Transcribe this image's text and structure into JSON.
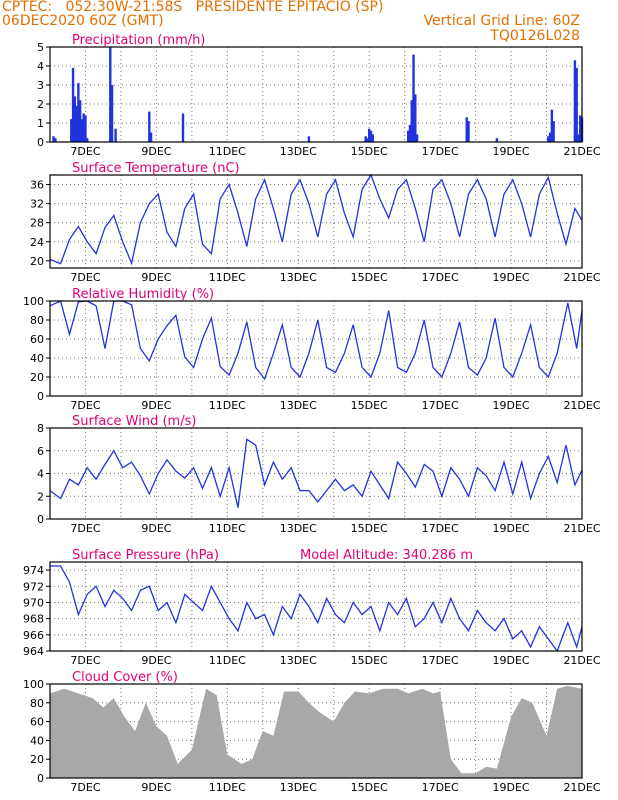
{
  "header": {
    "line1_left": "CPTEC:   052:30W-21:58S   PRESIDENTE EPITACIO (SP)",
    "line2_left": "06DEC2020 60Z (GMT)",
    "line2_right": "Vertical Grid Line: 60Z",
    "line3_right": "TQ0126L028"
  },
  "colors": {
    "header": "#e07000",
    "title": "#e0007a",
    "line": "#2233dd",
    "cloud": "#a8a8a8"
  },
  "x_axis": {
    "labels": [
      "7DEC",
      "9DEC",
      "11DEC",
      "13DEC",
      "15DEC",
      "17DEC",
      "19DEC",
      "21DEC"
    ],
    "range_days": [
      6,
      21
    ]
  },
  "chart_data": [
    {
      "id": "precip",
      "type": "bar",
      "title": "Precipitation  (mm/h)",
      "ylim": [
        0,
        5
      ],
      "yticks": [
        0,
        1,
        2,
        3,
        4,
        5
      ],
      "bars": [
        [
          6.1,
          0.3
        ],
        [
          6.15,
          0.2
        ],
        [
          6.6,
          1.2
        ],
        [
          6.65,
          3.9
        ],
        [
          6.7,
          2.4
        ],
        [
          6.75,
          1.9
        ],
        [
          6.8,
          3.1
        ],
        [
          6.85,
          2.2
        ],
        [
          6.9,
          1.2
        ],
        [
          6.95,
          1.5
        ],
        [
          7.0,
          1.4
        ],
        [
          7.05,
          0.2
        ],
        [
          7.7,
          5.0
        ],
        [
          7.75,
          3.0
        ],
        [
          7.85,
          0.7
        ],
        [
          8.8,
          1.6
        ],
        [
          8.85,
          0.5
        ],
        [
          9.75,
          1.5
        ],
        [
          13.3,
          0.3
        ],
        [
          14.9,
          0.3
        ],
        [
          14.95,
          0.2
        ],
        [
          15.0,
          0.7
        ],
        [
          15.05,
          0.6
        ],
        [
          15.1,
          0.4
        ],
        [
          16.1,
          0.6
        ],
        [
          16.15,
          0.9
        ],
        [
          16.2,
          2.2
        ],
        [
          16.25,
          4.6
        ],
        [
          16.3,
          2.5
        ],
        [
          16.35,
          0.4
        ],
        [
          17.75,
          1.3
        ],
        [
          17.8,
          1.1
        ],
        [
          18.6,
          0.2
        ],
        [
          20.05,
          0.3
        ],
        [
          20.1,
          0.5
        ],
        [
          20.15,
          1.7
        ],
        [
          20.2,
          1.1
        ],
        [
          20.8,
          4.3
        ],
        [
          20.85,
          3.9
        ],
        [
          20.9,
          0.4
        ],
        [
          20.95,
          1.4
        ],
        [
          21.0,
          1.3
        ]
      ]
    },
    {
      "id": "temp",
      "type": "line",
      "title": "Surface Temperature (nC)",
      "ylim": [
        18.5,
        38
      ],
      "yticks": [
        20,
        24,
        28,
        32,
        36
      ],
      "points": [
        [
          6.0,
          20.3
        ],
        [
          6.3,
          19.4
        ],
        [
          6.55,
          24.5
        ],
        [
          6.8,
          27.2
        ],
        [
          7.05,
          24
        ],
        [
          7.3,
          21.5
        ],
        [
          7.55,
          27
        ],
        [
          7.8,
          29.5
        ],
        [
          8.05,
          24
        ],
        [
          8.3,
          19.5
        ],
        [
          8.55,
          28
        ],
        [
          8.8,
          32
        ],
        [
          9.05,
          34
        ],
        [
          9.3,
          26
        ],
        [
          9.55,
          23
        ],
        [
          9.8,
          31
        ],
        [
          10.05,
          34
        ],
        [
          10.3,
          23.5
        ],
        [
          10.55,
          21.5
        ],
        [
          10.8,
          33
        ],
        [
          11.05,
          36
        ],
        [
          11.3,
          30
        ],
        [
          11.55,
          23
        ],
        [
          11.8,
          33
        ],
        [
          12.05,
          37
        ],
        [
          12.3,
          31
        ],
        [
          12.55,
          24
        ],
        [
          12.8,
          34
        ],
        [
          13.05,
          37
        ],
        [
          13.3,
          32
        ],
        [
          13.55,
          25
        ],
        [
          13.8,
          34
        ],
        [
          14.05,
          37
        ],
        [
          14.3,
          30
        ],
        [
          14.55,
          25
        ],
        [
          14.8,
          35
        ],
        [
          15.05,
          38
        ],
        [
          15.3,
          33
        ],
        [
          15.55,
          29
        ],
        [
          15.8,
          35
        ],
        [
          16.05,
          37
        ],
        [
          16.3,
          31
        ],
        [
          16.55,
          24
        ],
        [
          16.8,
          35
        ],
        [
          17.05,
          37
        ],
        [
          17.3,
          32
        ],
        [
          17.55,
          25
        ],
        [
          17.8,
          34
        ],
        [
          18.05,
          37
        ],
        [
          18.3,
          33
        ],
        [
          18.55,
          25
        ],
        [
          18.8,
          34
        ],
        [
          19.05,
          37
        ],
        [
          19.3,
          32
        ],
        [
          19.55,
          25
        ],
        [
          19.8,
          34
        ],
        [
          20.05,
          37.5
        ],
        [
          20.3,
          30
        ],
        [
          20.55,
          23.5
        ],
        [
          20.8,
          31
        ],
        [
          21.0,
          28.5
        ]
      ]
    },
    {
      "id": "rh",
      "type": "line",
      "title": "Relative Humidity  (%)",
      "ylim": [
        0,
        100
      ],
      "yticks": [
        0,
        20,
        40,
        60,
        80,
        100
      ],
      "points": [
        [
          6.0,
          95
        ],
        [
          6.3,
          100
        ],
        [
          6.55,
          65
        ],
        [
          6.8,
          99
        ],
        [
          7.05,
          100
        ],
        [
          7.3,
          95
        ],
        [
          7.55,
          50
        ],
        [
          7.8,
          100
        ],
        [
          8.05,
          100
        ],
        [
          8.3,
          96
        ],
        [
          8.55,
          50
        ],
        [
          8.8,
          37
        ],
        [
          9.05,
          60
        ],
        [
          9.3,
          74
        ],
        [
          9.55,
          85
        ],
        [
          9.8,
          41
        ],
        [
          10.05,
          30
        ],
        [
          10.3,
          60
        ],
        [
          10.55,
          82
        ],
        [
          10.8,
          31
        ],
        [
          11.05,
          22
        ],
        [
          11.3,
          45
        ],
        [
          11.55,
          78
        ],
        [
          11.8,
          30
        ],
        [
          12.05,
          18
        ],
        [
          12.3,
          45
        ],
        [
          12.55,
          75
        ],
        [
          12.8,
          30
        ],
        [
          13.05,
          20
        ],
        [
          13.3,
          45
        ],
        [
          13.55,
          80
        ],
        [
          13.8,
          30
        ],
        [
          14.05,
          25
        ],
        [
          14.3,
          45
        ],
        [
          14.55,
          75
        ],
        [
          14.8,
          30
        ],
        [
          15.05,
          20
        ],
        [
          15.3,
          45
        ],
        [
          15.55,
          90
        ],
        [
          15.8,
          30
        ],
        [
          16.05,
          25
        ],
        [
          16.3,
          45
        ],
        [
          16.55,
          80
        ],
        [
          16.8,
          30
        ],
        [
          17.05,
          20
        ],
        [
          17.3,
          45
        ],
        [
          17.55,
          78
        ],
        [
          17.8,
          30
        ],
        [
          18.05,
          22
        ],
        [
          18.3,
          40
        ],
        [
          18.55,
          82
        ],
        [
          18.8,
          30
        ],
        [
          19.05,
          20
        ],
        [
          19.3,
          45
        ],
        [
          19.55,
          75
        ],
        [
          19.8,
          30
        ],
        [
          20.05,
          20
        ],
        [
          20.3,
          45
        ],
        [
          20.6,
          98
        ],
        [
          20.85,
          50
        ],
        [
          21.0,
          90
        ]
      ]
    },
    {
      "id": "wind",
      "type": "line",
      "title": "Surface Wind  (m/s)",
      "ylim": [
        0,
        8
      ],
      "yticks": [
        0,
        2,
        4,
        6,
        8
      ],
      "points": [
        [
          6.0,
          2.5
        ],
        [
          6.3,
          1.8
        ],
        [
          6.55,
          3.5
        ],
        [
          6.8,
          3.0
        ],
        [
          7.05,
          4.5
        ],
        [
          7.3,
          3.5
        ],
        [
          7.55,
          4.8
        ],
        [
          7.8,
          6.0
        ],
        [
          8.05,
          4.5
        ],
        [
          8.3,
          5.0
        ],
        [
          8.55,
          3.8
        ],
        [
          8.8,
          2.2
        ],
        [
          9.05,
          4.0
        ],
        [
          9.3,
          5.2
        ],
        [
          9.55,
          4.2
        ],
        [
          9.8,
          3.6
        ],
        [
          10.05,
          4.5
        ],
        [
          10.3,
          2.7
        ],
        [
          10.55,
          4.5
        ],
        [
          10.8,
          2.0
        ],
        [
          11.05,
          4.5
        ],
        [
          11.3,
          1.0
        ],
        [
          11.55,
          7.0
        ],
        [
          11.8,
          6.5
        ],
        [
          12.05,
          3.0
        ],
        [
          12.3,
          5.0
        ],
        [
          12.55,
          3.5
        ],
        [
          12.8,
          4.5
        ],
        [
          13.05,
          2.5
        ],
        [
          13.3,
          2.5
        ],
        [
          13.55,
          1.5
        ],
        [
          13.8,
          2.5
        ],
        [
          14.05,
          3.5
        ],
        [
          14.3,
          2.5
        ],
        [
          14.55,
          3.0
        ],
        [
          14.8,
          2.0
        ],
        [
          15.05,
          4.2
        ],
        [
          15.3,
          3.0
        ],
        [
          15.55,
          1.8
        ],
        [
          15.8,
          5.0
        ],
        [
          16.05,
          4.0
        ],
        [
          16.3,
          2.8
        ],
        [
          16.55,
          4.8
        ],
        [
          16.8,
          4.2
        ],
        [
          17.05,
          2.0
        ],
        [
          17.3,
          4.5
        ],
        [
          17.55,
          3.5
        ],
        [
          17.8,
          2.0
        ],
        [
          18.05,
          4.5
        ],
        [
          18.3,
          3.8
        ],
        [
          18.55,
          2.5
        ],
        [
          18.8,
          5.0
        ],
        [
          19.05,
          2.2
        ],
        [
          19.3,
          5.0
        ],
        [
          19.55,
          1.8
        ],
        [
          19.8,
          4.0
        ],
        [
          20.05,
          5.5
        ],
        [
          20.3,
          3.2
        ],
        [
          20.55,
          6.5
        ],
        [
          20.8,
          3.0
        ],
        [
          21.0,
          4.3
        ]
      ]
    },
    {
      "id": "pres",
      "type": "line",
      "title": "Surface Pressure  (hPa)",
      "subtitle": "Model Altitude: 340.286  m",
      "ylim": [
        964,
        975
      ],
      "yticks": [
        964,
        966,
        968,
        970,
        972,
        974
      ],
      "points": [
        [
          6.0,
          974.5
        ],
        [
          6.3,
          974.5
        ],
        [
          6.55,
          972.5
        ],
        [
          6.8,
          968.5
        ],
        [
          7.05,
          971
        ],
        [
          7.3,
          972
        ],
        [
          7.55,
          969.5
        ],
        [
          7.8,
          971.5
        ],
        [
          8.05,
          970.5
        ],
        [
          8.3,
          969
        ],
        [
          8.55,
          971.5
        ],
        [
          8.8,
          972
        ],
        [
          9.05,
          969
        ],
        [
          9.3,
          970
        ],
        [
          9.55,
          967.5
        ],
        [
          9.8,
          971
        ],
        [
          10.05,
          970
        ],
        [
          10.3,
          969
        ],
        [
          10.55,
          972
        ],
        [
          10.8,
          970
        ],
        [
          11.05,
          968
        ],
        [
          11.3,
          966.5
        ],
        [
          11.55,
          970
        ],
        [
          11.8,
          968
        ],
        [
          12.05,
          968.5
        ],
        [
          12.3,
          966
        ],
        [
          12.55,
          969.5
        ],
        [
          12.8,
          968
        ],
        [
          13.05,
          971
        ],
        [
          13.3,
          969.5
        ],
        [
          13.55,
          967.5
        ],
        [
          13.8,
          970.5
        ],
        [
          14.05,
          968.5
        ],
        [
          14.3,
          967.5
        ],
        [
          14.55,
          970
        ],
        [
          14.8,
          968.5
        ],
        [
          15.05,
          969.5
        ],
        [
          15.3,
          966.5
        ],
        [
          15.55,
          970
        ],
        [
          15.8,
          968.5
        ],
        [
          16.05,
          970.5
        ],
        [
          16.3,
          967
        ],
        [
          16.55,
          968
        ],
        [
          16.8,
          970
        ],
        [
          17.05,
          967.5
        ],
        [
          17.3,
          970.5
        ],
        [
          17.55,
          968
        ],
        [
          17.8,
          966.5
        ],
        [
          18.05,
          969
        ],
        [
          18.3,
          967.5
        ],
        [
          18.55,
          966.5
        ],
        [
          18.8,
          968
        ],
        [
          19.05,
          965.5
        ],
        [
          19.3,
          966.5
        ],
        [
          19.55,
          964.5
        ],
        [
          19.8,
          967
        ],
        [
          20.05,
          965.5
        ],
        [
          20.3,
          964
        ],
        [
          20.6,
          967.5
        ],
        [
          20.85,
          964.5
        ],
        [
          21.0,
          967
        ]
      ]
    },
    {
      "id": "cloud",
      "type": "area",
      "title": "Cloud Cover  (%)",
      "ylim": [
        0,
        100
      ],
      "yticks": [
        0,
        20,
        40,
        60,
        80,
        100
      ],
      "points": [
        [
          6.0,
          90
        ],
        [
          6.4,
          95
        ],
        [
          6.8,
          90
        ],
        [
          7.2,
          85
        ],
        [
          7.5,
          75
        ],
        [
          7.8,
          85
        ],
        [
          8.1,
          65
        ],
        [
          8.4,
          50
        ],
        [
          8.7,
          80
        ],
        [
          9.0,
          55
        ],
        [
          9.3,
          45
        ],
        [
          9.6,
          15
        ],
        [
          10.0,
          30
        ],
        [
          10.4,
          95
        ],
        [
          10.7,
          88
        ],
        [
          11.0,
          25
        ],
        [
          11.4,
          15
        ],
        [
          11.7,
          20
        ],
        [
          12.0,
          50
        ],
        [
          12.3,
          45
        ],
        [
          12.6,
          92
        ],
        [
          13.0,
          92
        ],
        [
          13.3,
          80
        ],
        [
          13.6,
          70
        ],
        [
          14.0,
          60
        ],
        [
          14.3,
          80
        ],
        [
          14.6,
          92
        ],
        [
          15.0,
          90
        ],
        [
          15.4,
          95
        ],
        [
          15.8,
          95
        ],
        [
          16.1,
          90
        ],
        [
          16.5,
          95
        ],
        [
          16.8,
          90
        ],
        [
          17.0,
          92
        ],
        [
          17.3,
          20
        ],
        [
          17.6,
          5
        ],
        [
          18.0,
          5
        ],
        [
          18.3,
          12
        ],
        [
          18.6,
          10
        ],
        [
          19.0,
          65
        ],
        [
          19.3,
          85
        ],
        [
          19.6,
          80
        ],
        [
          20.0,
          45
        ],
        [
          20.3,
          95
        ],
        [
          20.6,
          98
        ],
        [
          21.0,
          95
        ]
      ]
    }
  ]
}
